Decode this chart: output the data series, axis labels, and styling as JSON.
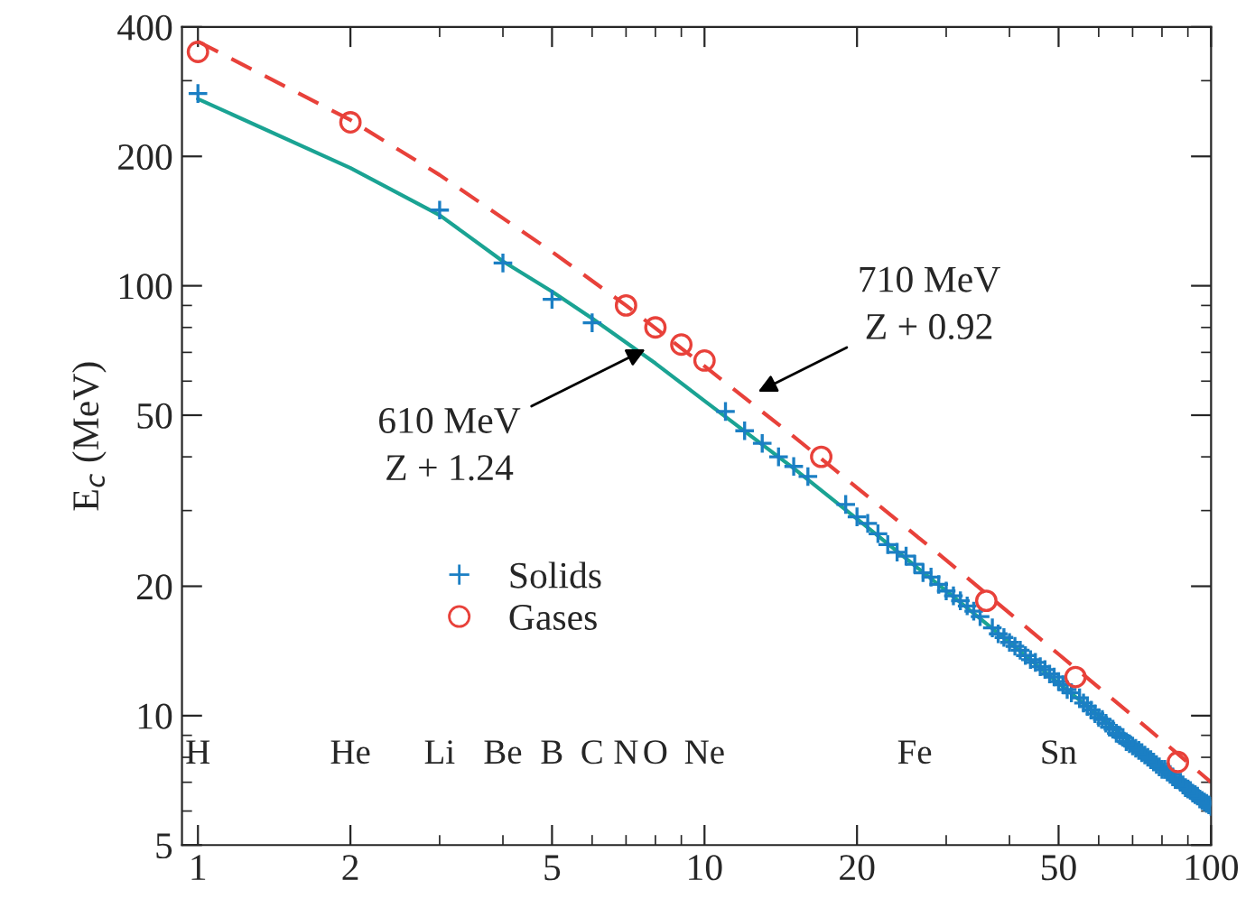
{
  "chart_data": {
    "type": "scatter",
    "ylabel": "E$_{c}$ (MeV)",
    "log": "xy",
    "grid": false,
    "legend": "left",
    "xlim": [
      0.93,
      100
    ],
    "xticks": [
      1,
      2,
      5,
      10,
      20,
      50,
      100
    ],
    "ylim": [
      5,
      400
    ],
    "yticks": [
      5,
      10,
      20,
      50,
      100,
      200,
      400
    ],
    "series": [
      {
        "type": "line",
        "color": "#1aa393",
        "line_style": "solid",
        "marker": "none",
        "x": [
          1,
          2,
          3,
          4,
          5,
          6,
          8,
          10,
          15,
          20,
          30,
          40,
          50,
          60,
          70,
          80,
          90,
          100
        ],
        "values": [
          272,
          188,
          146,
          114,
          97,
          84,
          66,
          54,
          37.6,
          28.7,
          19.5,
          14.8,
          11.9,
          10.0,
          8.6,
          7.6,
          6.8,
          6.2
        ]
      },
      {
        "type": "line",
        "color": "#e8413a",
        "line_style": "dashed",
        "marker": "none",
        "x": [
          1,
          2,
          3,
          5,
          7,
          10,
          15,
          20,
          30,
          50,
          70,
          100
        ],
        "values": [
          370,
          243,
          181,
          120,
          90,
          65,
          44.6,
          33.9,
          23,
          13.9,
          10,
          7.0
        ]
      },
      {
        "name": "Solids",
        "color": "#1b7fc4",
        "marker": "cross",
        "x": [
          1,
          3,
          4,
          5,
          6,
          11,
          12,
          13,
          14,
          15,
          16,
          19,
          20,
          21,
          22,
          23,
          24,
          25,
          26,
          27,
          28,
          29,
          30,
          31,
          32,
          33,
          34,
          35,
          37,
          38,
          39,
          40,
          41,
          42,
          43,
          44,
          45,
          46,
          47,
          48,
          49,
          50,
          51,
          52,
          53,
          55,
          56,
          57,
          58,
          59,
          60,
          61,
          62,
          63,
          64,
          65,
          66,
          67,
          68,
          69,
          70,
          71,
          72,
          73,
          74,
          75,
          76,
          77,
          78,
          79,
          80,
          81,
          82,
          83,
          84,
          85,
          87,
          88,
          89,
          90,
          91,
          92,
          93,
          94,
          95,
          96,
          97,
          98,
          99,
          100
        ],
        "values": [
          280,
          150,
          113,
          93,
          82,
          51,
          46,
          43,
          40,
          38,
          36,
          31,
          29,
          28,
          26.5,
          25,
          24,
          23.5,
          22.5,
          21.5,
          21,
          20.2,
          19.5,
          19,
          18.5,
          18,
          17.5,
          17,
          16,
          15.5,
          15.2,
          14.8,
          14.5,
          14.2,
          13.8,
          13.5,
          13.3,
          13,
          12.8,
          12.5,
          12.3,
          12,
          11.8,
          11.5,
          11.3,
          11,
          10.7,
          10.5,
          10.3,
          10.1,
          9.9,
          9.8,
          9.6,
          9.4,
          9.3,
          9.1,
          9.0,
          8.9,
          8.7,
          8.6,
          8.5,
          8.4,
          8.3,
          8.2,
          8.1,
          8.0,
          7.9,
          7.8,
          7.7,
          7.6,
          7.5,
          7.5,
          7.4,
          7.3,
          7.2,
          7.1,
          7.0,
          6.9,
          6.8,
          6.75,
          6.7,
          6.6,
          6.55,
          6.5,
          6.4,
          6.35,
          6.3,
          6.25,
          6.2,
          6.15
        ]
      },
      {
        "name": "Gases",
        "color": "#e8413a",
        "marker": "circle",
        "x": [
          1,
          2,
          7,
          8,
          9,
          10,
          17,
          36,
          54,
          86
        ],
        "values": [
          350,
          240,
          90,
          80,
          73,
          67,
          40,
          18.5,
          12.3,
          7.8
        ]
      }
    ],
    "annotations": [
      {
        "text": "610 MeV\nZ + 1.24",
        "x": 7.8,
        "y": 72
      },
      {
        "text": "710 MeV\nZ + 0.92",
        "x": 12.5,
        "y": 56
      },
      "H",
      "He",
      "Li",
      "Be",
      "B",
      "C",
      "N",
      "O",
      "Ne",
      "Fe",
      "Sn"
    ]
  }
}
